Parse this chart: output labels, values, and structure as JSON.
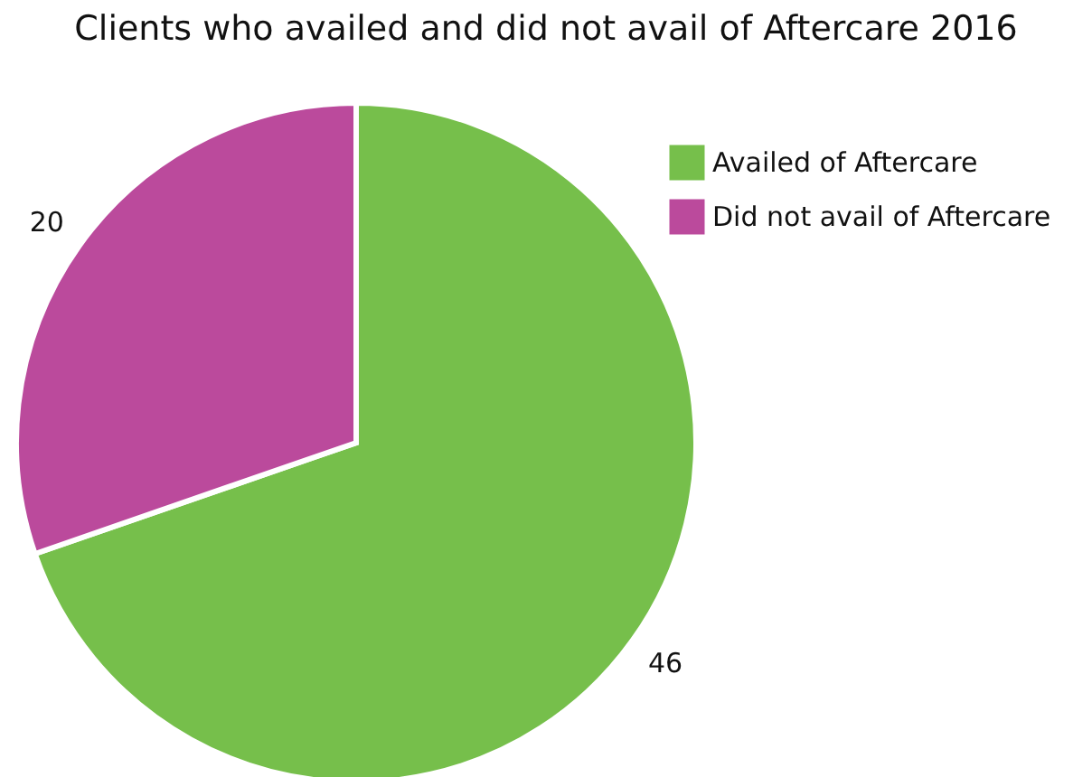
{
  "chart_data": {
    "type": "pie",
    "title": "Clients who availed and did not avail of Aftercare 2016",
    "categories": [
      "Availed of Aftercare",
      "Did not avail of Aftercare"
    ],
    "values": [
      46,
      20
    ],
    "colors": [
      "#76bf4b",
      "#bb4a9c"
    ],
    "data_labels": true,
    "legend": "top right"
  }
}
